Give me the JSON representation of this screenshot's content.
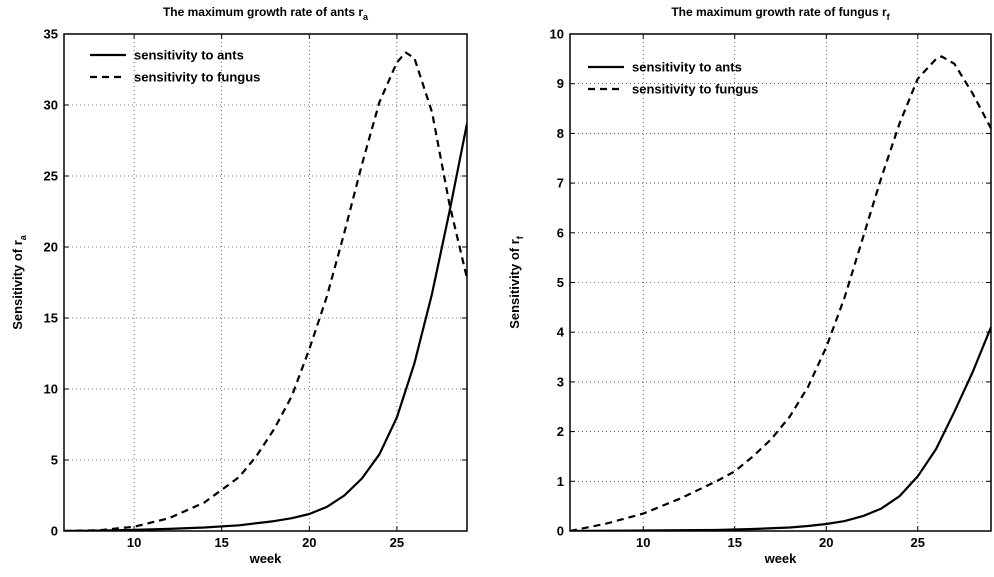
{
  "chart_data": [
    {
      "type": "line",
      "title": "The maximum growth rate of ants r",
      "title_subscript": "a",
      "xlabel": "week",
      "ylabel": "Sensitivity of r",
      "ylabel_subscript": "a",
      "xlim": [
        6,
        29
      ],
      "ylim": [
        0,
        35
      ],
      "xticks": [
        10,
        15,
        20,
        25
      ],
      "yticks": [
        0,
        5,
        10,
        15,
        20,
        25,
        30,
        35
      ],
      "grid": true,
      "legend_position": "top-left",
      "series": [
        {
          "name": "sensitivity to  ants",
          "style": "solid",
          "x": [
            6,
            8,
            10,
            12,
            14,
            16,
            18,
            19,
            20,
            21,
            22,
            23,
            24,
            25,
            26,
            27,
            28,
            29
          ],
          "y": [
            0.0,
            0.03,
            0.08,
            0.15,
            0.25,
            0.4,
            0.7,
            0.9,
            1.2,
            1.7,
            2.5,
            3.7,
            5.4,
            8.0,
            11.8,
            16.7,
            22.5,
            28.7
          ]
        },
        {
          "name": "sensitivity to fungus",
          "style": "dashed",
          "x": [
            6,
            8,
            10,
            12,
            14,
            16,
            17,
            18,
            19,
            20,
            21,
            22,
            23,
            24,
            25,
            25.5,
            26,
            27,
            28,
            29
          ],
          "y": [
            0.0,
            0.05,
            0.3,
            0.9,
            2.0,
            3.8,
            5.3,
            7.2,
            9.5,
            12.8,
            16.5,
            21.0,
            25.8,
            30.2,
            33.0,
            33.7,
            33.3,
            29.5,
            23.0,
            17.8
          ]
        }
      ]
    },
    {
      "type": "line",
      "title": "The maximum growth rate of fungus r",
      "title_subscript": "f",
      "xlabel": "week",
      "ylabel": "Sensitivity of r",
      "ylabel_subscript": "f",
      "xlim": [
        6,
        29
      ],
      "ylim": [
        0,
        10
      ],
      "xticks": [
        10,
        15,
        20,
        25
      ],
      "yticks": [
        0,
        1,
        2,
        3,
        4,
        5,
        6,
        7,
        8,
        9,
        10
      ],
      "grid": true,
      "legend_position": "top-left",
      "series": [
        {
          "name": "sensitivity to ants",
          "style": "solid",
          "x": [
            6,
            10,
            14,
            16,
            18,
            19,
            20,
            21,
            22,
            23,
            24,
            25,
            26,
            27,
            28,
            29
          ],
          "y": [
            0.0,
            0.01,
            0.02,
            0.04,
            0.07,
            0.1,
            0.14,
            0.2,
            0.3,
            0.45,
            0.7,
            1.1,
            1.65,
            2.4,
            3.2,
            4.1
          ]
        },
        {
          "name": "sensitivity to fungus",
          "style": "dashed",
          "x": [
            6,
            8,
            10,
            12,
            14,
            15,
            16,
            17,
            18,
            19,
            20,
            21,
            22,
            23,
            24,
            25,
            26,
            26.3,
            27,
            28,
            29
          ],
          "y": [
            0.0,
            0.15,
            0.35,
            0.65,
            1.0,
            1.2,
            1.5,
            1.85,
            2.3,
            2.9,
            3.7,
            4.7,
            5.9,
            7.1,
            8.2,
            9.1,
            9.5,
            9.55,
            9.4,
            8.8,
            8.1
          ]
        }
      ]
    }
  ]
}
